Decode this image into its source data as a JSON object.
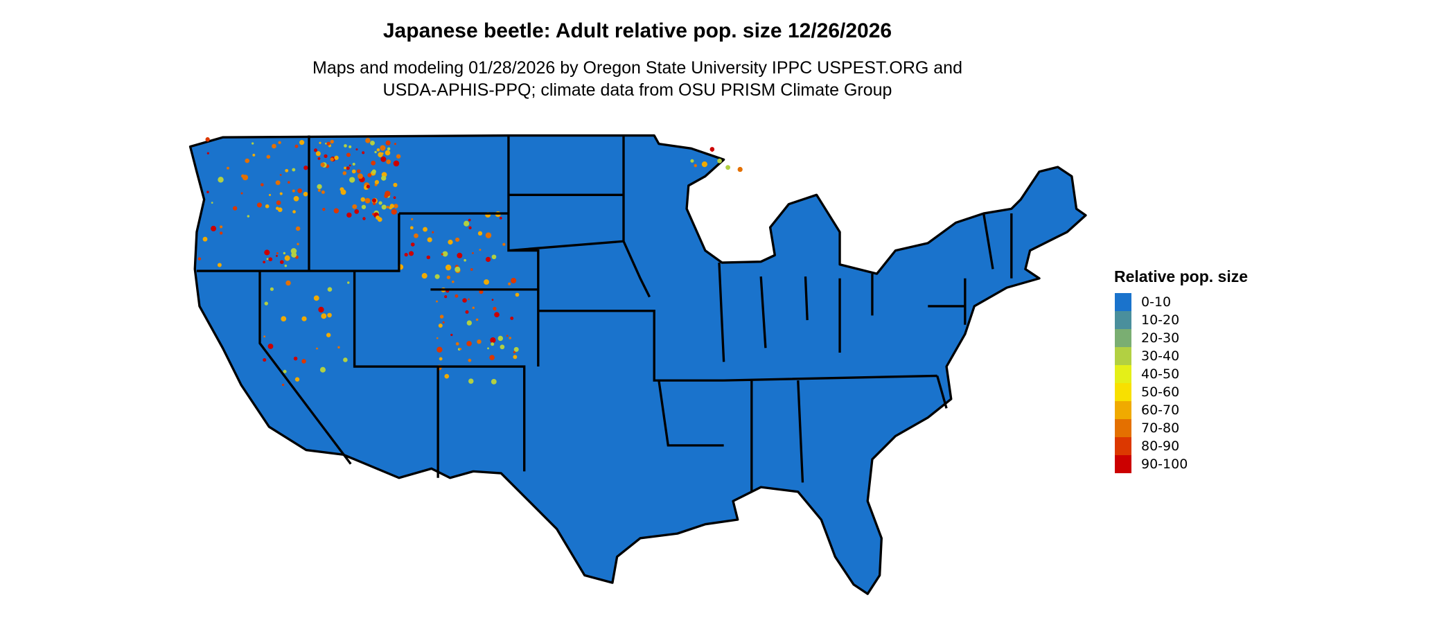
{
  "title": "Japanese beetle: Adult relative pop. size 12/26/2026",
  "subtitle_lines": [
    "Maps and modeling 01/28/2026 by Oregon State University IPPC USPEST.ORG and",
    "USDA-APHIS-PPQ; climate data from OSU PRISM Climate Group"
  ],
  "map": {
    "region": "Contiguous United States",
    "base_color": "#1a73cc",
    "border_color": "#000000"
  },
  "legend": {
    "title": "Relative pop. size",
    "items": [
      {
        "label": "0-10",
        "color": "#1a73cc"
      },
      {
        "label": "10-20",
        "color": "#4a8f9c"
      },
      {
        "label": "20-30",
        "color": "#7aae72"
      },
      {
        "label": "30-40",
        "color": "#b2d042"
      },
      {
        "label": "40-50",
        "color": "#e4ef18"
      },
      {
        "label": "50-60",
        "color": "#f8e000"
      },
      {
        "label": "60-70",
        "color": "#f0aa00"
      },
      {
        "label": "70-80",
        "color": "#e47000"
      },
      {
        "label": "80-90",
        "color": "#dc3800"
      },
      {
        "label": "90-100",
        "color": "#cc0000"
      }
    ]
  }
}
